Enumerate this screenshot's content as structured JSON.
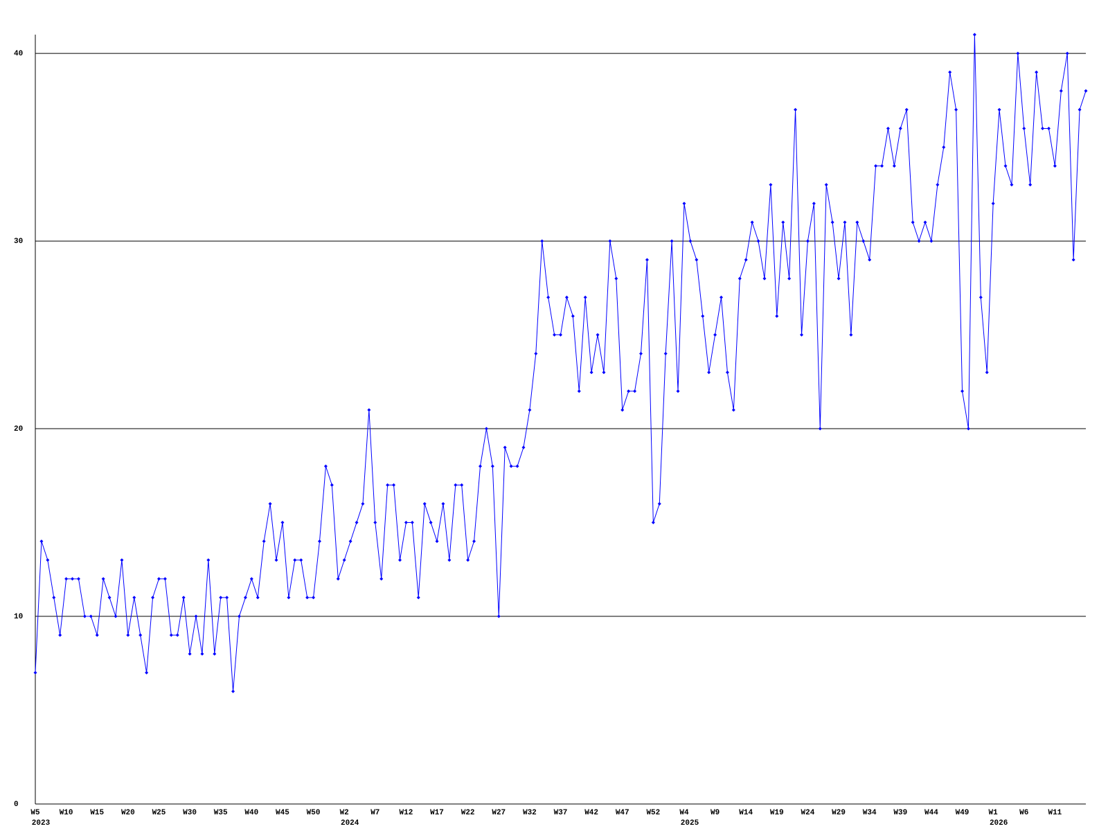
{
  "chart_data": {
    "type": "line",
    "categories": [
      "W5",
      null,
      null,
      null,
      null,
      "W10",
      null,
      null,
      null,
      null,
      "W15",
      null,
      null,
      null,
      null,
      "W20",
      null,
      null,
      null,
      null,
      "W25",
      null,
      null,
      null,
      null,
      "W30",
      null,
      null,
      null,
      null,
      "W35",
      null,
      null,
      null,
      null,
      "W40",
      null,
      null,
      null,
      null,
      "W45",
      null,
      null,
      null,
      null,
      "W50",
      null,
      null,
      null,
      null,
      "W2",
      null,
      null,
      null,
      null,
      "W7",
      null,
      null,
      null,
      null,
      "W12",
      null,
      null,
      null,
      null,
      "W17",
      null,
      null,
      null,
      null,
      "W22",
      null,
      null,
      null,
      null,
      "W27",
      null,
      null,
      null,
      null,
      "W32",
      null,
      null,
      null,
      null,
      "W37",
      null,
      null,
      null,
      null,
      "W42",
      null,
      null,
      null,
      null,
      "W47",
      null,
      null,
      null,
      null,
      "W52",
      null,
      null,
      null,
      null,
      "W4",
      null,
      null,
      null,
      null,
      "W9",
      null,
      null,
      null,
      null,
      "W14",
      null,
      null,
      null,
      null,
      "W19",
      null,
      null,
      null,
      null,
      "W24",
      null,
      null,
      null,
      null,
      "W29",
      null,
      null,
      null,
      null,
      "W34",
      null,
      null,
      null,
      null,
      "W39",
      null,
      null,
      null,
      null,
      "W44",
      null,
      null,
      null,
      null,
      "W49",
      null,
      null,
      null,
      null,
      "W1",
      null,
      null,
      null,
      null,
      "W6",
      null,
      null,
      null,
      null,
      "W11",
      null,
      null,
      null,
      null,
      null
    ],
    "category_years": [
      "2023",
      null,
      null,
      null,
      null,
      null,
      null,
      null,
      null,
      null,
      null,
      null,
      null,
      null,
      null,
      null,
      null,
      null,
      null,
      null,
      null,
      null,
      null,
      null,
      null,
      null,
      null,
      null,
      null,
      null,
      null,
      null,
      null,
      null,
      null,
      null,
      null,
      null,
      null,
      null,
      null,
      null,
      null,
      null,
      null,
      null,
      null,
      null,
      null,
      null,
      "2024",
      null,
      null,
      null,
      null,
      null,
      null,
      null,
      null,
      null,
      null,
      null,
      null,
      null,
      null,
      null,
      null,
      null,
      null,
      null,
      null,
      null,
      null,
      null,
      null,
      null,
      null,
      null,
      null,
      null,
      null,
      null,
      null,
      null,
      null,
      null,
      null,
      null,
      null,
      null,
      null,
      null,
      null,
      null,
      null,
      null,
      null,
      null,
      null,
      null,
      null,
      null,
      null,
      null,
      null,
      "2025",
      null,
      null,
      null,
      null,
      null,
      null,
      null,
      null,
      null,
      null,
      null,
      null,
      null,
      null,
      null,
      null,
      null,
      null,
      null,
      null,
      null,
      null,
      null,
      null,
      null,
      null,
      null,
      null,
      null,
      null,
      null,
      null,
      null,
      null,
      null,
      null,
      null,
      null,
      null,
      null,
      null,
      null,
      null,
      null,
      null,
      null,
      null,
      null,
      null,
      "2026",
      null,
      null,
      null,
      null,
      null,
      null,
      null,
      null,
      null,
      null,
      null,
      null,
      null,
      null,
      null
    ],
    "values": [
      7,
      14,
      13,
      11,
      9,
      12,
      12,
      12,
      10,
      10,
      9,
      12,
      11,
      10,
      13,
      9,
      11,
      9,
      7,
      11,
      12,
      12,
      9,
      9,
      11,
      8,
      10,
      8,
      13,
      8,
      11,
      11,
      6,
      10,
      11,
      12,
      11,
      14,
      16,
      13,
      15,
      11,
      13,
      13,
      11,
      11,
      14,
      18,
      17,
      12,
      13,
      14,
      15,
      16,
      21,
      15,
      12,
      17,
      17,
      13,
      15,
      15,
      11,
      16,
      15,
      14,
      16,
      13,
      17,
      17,
      13,
      14,
      18,
      20,
      18,
      10,
      19,
      18,
      18,
      19,
      21,
      24,
      30,
      27,
      25,
      25,
      27,
      26,
      22,
      27,
      23,
      25,
      23,
      30,
      28,
      21,
      22,
      22,
      24,
      29,
      15,
      16,
      24,
      30,
      22,
      32,
      30,
      29,
      26,
      23,
      25,
      27,
      23,
      21,
      28,
      29,
      31,
      30,
      28,
      33,
      26,
      31,
      28,
      37,
      25,
      30,
      32,
      20,
      33,
      31,
      28,
      31,
      25,
      31,
      30,
      29,
      34,
      34,
      36,
      34,
      36,
      37,
      31,
      30,
      31,
      30,
      33,
      35,
      39,
      37,
      22,
      20,
      41,
      27,
      23,
      32,
      37,
      34,
      33,
      40,
      36,
      33,
      39,
      36,
      36,
      34,
      38,
      40,
      29,
      37,
      38
    ],
    "color": "#0000ff",
    "ylim": [
      0,
      41
    ],
    "yticks": [
      0,
      10,
      20,
      30,
      40
    ],
    "grid": true
  }
}
